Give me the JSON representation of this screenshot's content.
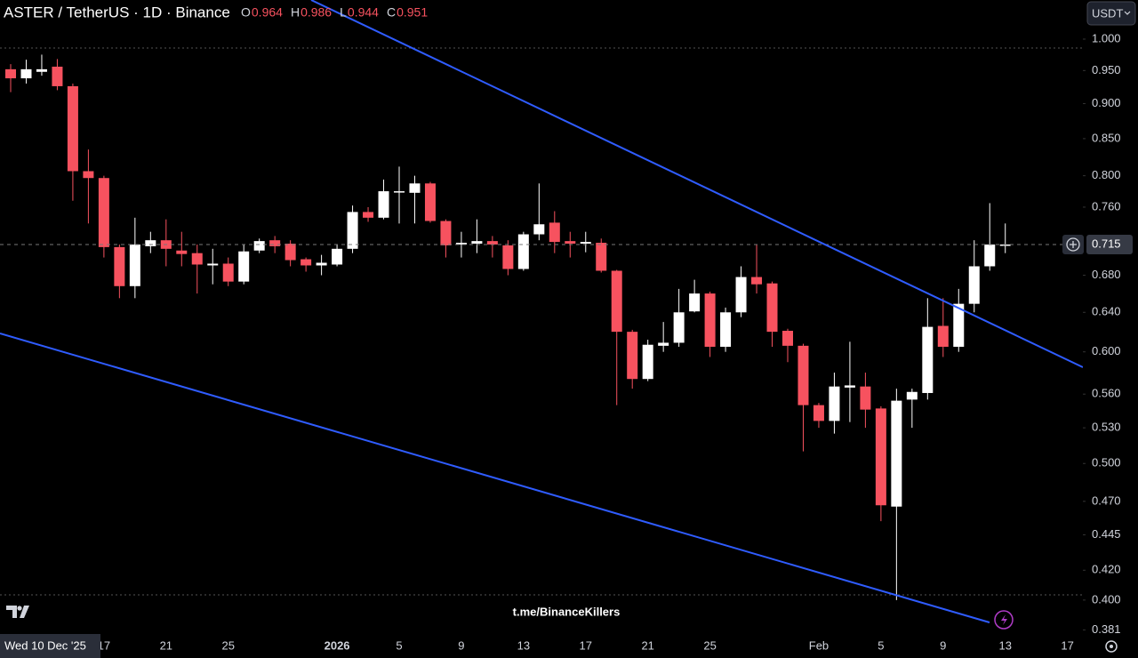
{
  "chart_data": {
    "type": "candlestick",
    "title": "ASTER / TetherUS · 1D · Binance",
    "legend_ohlc": [
      {
        "label": "O",
        "value": "0.964"
      },
      {
        "label": "H",
        "value": "0.986"
      },
      {
        "label": "L",
        "value": "0.944"
      },
      {
        "label": "C",
        "value": "0.951"
      }
    ],
    "currency": "USDT",
    "watermark": "t.me/BinanceKillers",
    "crosshair_date": "Wed 10 Dec '25",
    "log_scale": true,
    "up_color": "#ffffff",
    "down_color": "#f7525f",
    "open": [
      0.952,
      0.938,
      0.948,
      0.956,
      0.926,
      0.806,
      0.797,
      0.712,
      0.668,
      0.713,
      0.72,
      0.708,
      0.705,
      0.691,
      0.693,
      0.673,
      0.708,
      0.72,
      0.716,
      0.698,
      0.691,
      0.692,
      0.71,
      0.754,
      0.747,
      0.779,
      0.778,
      0.79,
      0.743,
      0.715,
      0.716,
      0.719,
      0.714,
      0.687,
      0.727,
      0.741,
      0.719,
      0.716,
      0.717,
      0.685,
      0.62,
      0.574,
      0.606,
      0.609,
      0.641,
      0.66,
      0.605,
      0.64,
      0.678,
      0.671,
      0.621,
      0.606,
      0.55,
      0.536,
      0.566,
      0.567,
      0.547,
      0.466,
      0.555,
      0.561,
      0.626,
      0.605,
      0.649,
      0.69,
      0.714
    ],
    "high": [
      0.96,
      0.967,
      0.975,
      0.968,
      0.93,
      0.835,
      0.8,
      0.715,
      0.747,
      0.73,
      0.745,
      0.73,
      0.715,
      0.71,
      0.7,
      0.715,
      0.722,
      0.725,
      0.72,
      0.7,
      0.703,
      0.715,
      0.762,
      0.76,
      0.795,
      0.812,
      0.8,
      0.792,
      0.745,
      0.73,
      0.745,
      0.725,
      0.72,
      0.73,
      0.79,
      0.755,
      0.73,
      0.73,
      0.722,
      0.686,
      0.622,
      0.612,
      0.63,
      0.665,
      0.675,
      0.662,
      0.645,
      0.69,
      0.715,
      0.673,
      0.623,
      0.608,
      0.552,
      0.58,
      0.61,
      0.58,
      0.549,
      0.565,
      0.565,
      0.655,
      0.655,
      0.665,
      0.72,
      0.765,
      0.74
    ],
    "low": [
      0.917,
      0.93,
      0.942,
      0.92,
      0.768,
      0.74,
      0.7,
      0.655,
      0.655,
      0.705,
      0.69,
      0.69,
      0.66,
      0.67,
      0.668,
      0.67,
      0.705,
      0.705,
      0.69,
      0.684,
      0.68,
      0.69,
      0.705,
      0.742,
      0.745,
      0.74,
      0.74,
      0.741,
      0.7,
      0.7,
      0.705,
      0.7,
      0.68,
      0.685,
      0.72,
      0.705,
      0.7,
      0.706,
      0.683,
      0.55,
      0.565,
      0.572,
      0.6,
      0.605,
      0.64,
      0.595,
      0.6,
      0.635,
      0.66,
      0.605,
      0.59,
      0.51,
      0.53,
      0.525,
      0.535,
      0.53,
      0.455,
      0.4,
      0.53,
      0.555,
      0.595,
      0.6,
      0.64,
      0.685,
      0.705
    ],
    "close": [
      0.938,
      0.952,
      0.952,
      0.926,
      0.806,
      0.797,
      0.712,
      0.668,
      0.715,
      0.72,
      0.71,
      0.704,
      0.692,
      0.693,
      0.673,
      0.707,
      0.719,
      0.713,
      0.697,
      0.691,
      0.694,
      0.71,
      0.754,
      0.747,
      0.78,
      0.78,
      0.79,
      0.743,
      0.714,
      0.717,
      0.719,
      0.715,
      0.687,
      0.727,
      0.739,
      0.718,
      0.716,
      0.718,
      0.685,
      0.62,
      0.574,
      0.607,
      0.609,
      0.64,
      0.66,
      0.605,
      0.64,
      0.678,
      0.67,
      0.62,
      0.606,
      0.55,
      0.536,
      0.567,
      0.568,
      0.546,
      0.467,
      0.554,
      0.562,
      0.625,
      0.605,
      0.649,
      0.69,
      0.715,
      0.715
    ],
    "ylim": [
      0.379,
      1.066
    ],
    "yticks": [
      {
        "value": 1.0,
        "label": "1.000"
      },
      {
        "value": 0.95,
        "label": "0.950"
      },
      {
        "value": 0.9,
        "label": "0.900"
      },
      {
        "value": 0.85,
        "label": "0.850"
      },
      {
        "value": 0.8,
        "label": "0.800"
      },
      {
        "value": 0.76,
        "label": "0.760"
      },
      {
        "value": 0.68,
        "label": "0.680"
      },
      {
        "value": 0.64,
        "label": "0.640"
      },
      {
        "value": 0.6,
        "label": "0.600"
      },
      {
        "value": 0.56,
        "label": "0.560"
      },
      {
        "value": 0.53,
        "label": "0.530"
      },
      {
        "value": 0.5,
        "label": "0.500"
      },
      {
        "value": 0.47,
        "label": "0.470"
      },
      {
        "value": 0.445,
        "label": "0.445"
      },
      {
        "value": 0.42,
        "label": "0.420"
      },
      {
        "value": 0.4,
        "label": "0.400"
      },
      {
        "value": 0.381,
        "label": "0.381"
      }
    ],
    "last_price": {
      "value": 0.715,
      "label": "0.715"
    },
    "xticks": [
      {
        "value": 6,
        "label": "17"
      },
      {
        "value": 10,
        "label": "21"
      },
      {
        "value": 14,
        "label": "25"
      },
      {
        "value": 21,
        "label": "2026"
      },
      {
        "value": 25,
        "label": "5"
      },
      {
        "value": 29,
        "label": "9"
      },
      {
        "value": 33,
        "label": "13"
      },
      {
        "value": 37,
        "label": "17"
      },
      {
        "value": 41,
        "label": "21"
      },
      {
        "value": 45,
        "label": "25"
      },
      {
        "value": 52,
        "label": "Feb"
      },
      {
        "value": 56,
        "label": "5"
      },
      {
        "value": 60,
        "label": "9"
      },
      {
        "value": 64,
        "label": "13"
      },
      {
        "value": 68,
        "label": "17"
      }
    ]
  }
}
